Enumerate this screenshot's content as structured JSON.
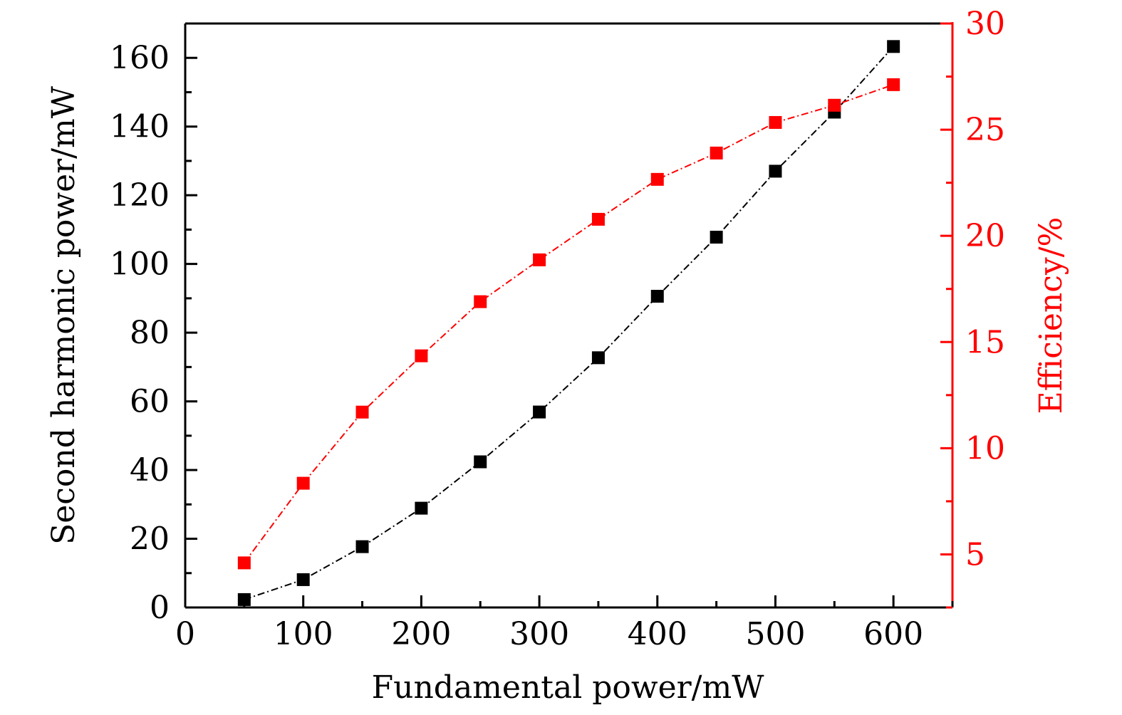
{
  "chart_data": {
    "type": "line",
    "xlabel": "Fundamental power/mW",
    "ylabel": "Second harmonic power/mW",
    "y2label": "Efficiency/%",
    "xlim": [
      0,
      650
    ],
    "ylim": [
      0,
      170
    ],
    "y2lim": [
      2.5,
      30
    ],
    "xticks": [
      0,
      100,
      200,
      300,
      400,
      500,
      600
    ],
    "yticks": [
      0,
      20,
      40,
      60,
      80,
      100,
      120,
      140,
      160
    ],
    "y2ticks": [
      5,
      10,
      15,
      20,
      25,
      30
    ],
    "grid": false,
    "x": [
      50,
      100,
      150,
      200,
      250,
      300,
      350,
      400,
      450,
      500,
      550,
      600
    ],
    "series": [
      {
        "axis": "left",
        "color": "#000000",
        "marker": "square",
        "line": "dash-dot",
        "values": [
          2.3,
          8.1,
          17.7,
          28.9,
          42.4,
          56.9,
          72.7,
          90.6,
          107.8,
          127.0,
          144.2,
          163.3
        ]
      },
      {
        "axis": "right",
        "color": "#ff0000",
        "marker": "square",
        "line": "dash-dot",
        "values": [
          4.6,
          8.35,
          11.7,
          14.35,
          16.9,
          18.87,
          20.78,
          22.66,
          23.9,
          25.34,
          26.15,
          27.12
        ]
      }
    ]
  }
}
